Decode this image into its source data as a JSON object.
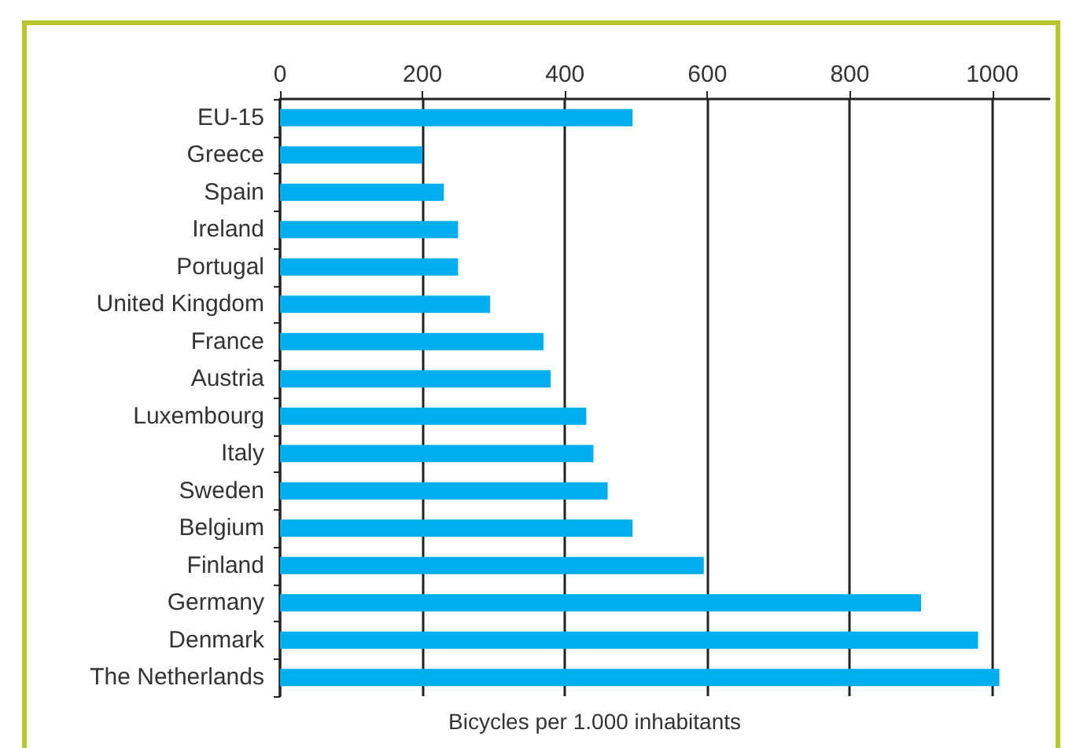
{
  "chart_data": {
    "type": "bar",
    "orientation": "horizontal",
    "xlabel": "Bicycles per 1.000 inhabitants",
    "categories": [
      "EU-15",
      "Greece",
      "Spain",
      "Ireland",
      "Portugal",
      "United Kingdom",
      "France",
      "Austria",
      "Luxembourg",
      "Italy",
      "Sweden",
      "Belgium",
      "Finland",
      "Germany",
      "Denmark",
      "The Netherlands"
    ],
    "values": [
      495,
      200,
      230,
      250,
      250,
      295,
      370,
      380,
      430,
      440,
      460,
      495,
      595,
      900,
      980,
      1010
    ],
    "color": "#00aeef",
    "xlim": [
      0,
      1080
    ],
    "xticks": [
      0,
      200,
      400,
      600,
      800,
      1000
    ],
    "grid": "x"
  }
}
